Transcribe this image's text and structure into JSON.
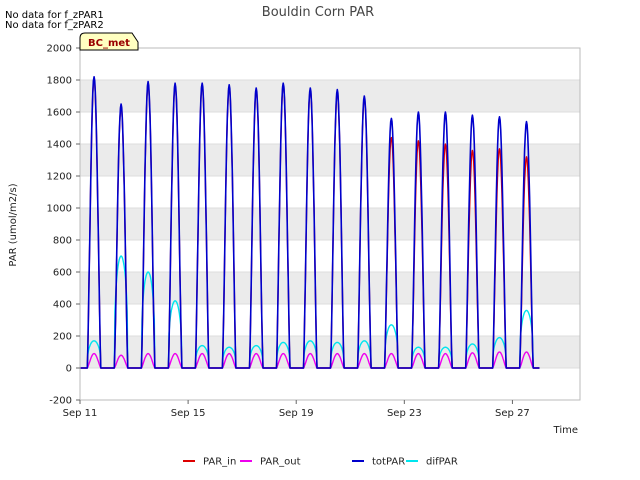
{
  "notes": [
    "No data for f_zPAR1",
    "No data for f_zPAR2"
  ],
  "site_badge": "BC_met",
  "colors": {
    "PAR_in": "#dd0000",
    "PAR_out": "#ee00ee",
    "totPAR": "#0000cc",
    "difPAR": "#00e5ee",
    "band": "#ebebeb"
  },
  "chart_data": {
    "type": "line",
    "title": "Bouldin Corn PAR",
    "xlabel": "Time",
    "ylabel": "PAR (umol/m2/s)",
    "ylim": [
      -200,
      2000
    ],
    "yticks": [
      -200,
      0,
      200,
      400,
      600,
      800,
      1000,
      1200,
      1400,
      1600,
      1800,
      2000
    ],
    "xlim_days": [
      11,
      29.5
    ],
    "xticks": [
      {
        "day": 11,
        "label": "Sep 11"
      },
      {
        "day": 15,
        "label": "Sep 15"
      },
      {
        "day": 19,
        "label": "Sep 19"
      },
      {
        "day": 23,
        "label": "Sep 23"
      },
      {
        "day": 27,
        "label": "Sep 27"
      }
    ],
    "days": [
      11,
      12,
      13,
      14,
      15,
      16,
      17,
      18,
      19,
      20,
      21,
      22,
      23,
      24,
      25,
      26,
      27
    ],
    "series": [
      {
        "name": "PAR_in",
        "daily_peak": [
          1810,
          1640,
          1780,
          1770,
          1770,
          1760,
          1740,
          1770,
          1740,
          1730,
          1690,
          1440,
          1420,
          1400,
          1360,
          1370,
          1320
        ]
      },
      {
        "name": "PAR_out",
        "daily_peak": [
          90,
          80,
          90,
          90,
          90,
          90,
          90,
          90,
          90,
          90,
          90,
          90,
          90,
          90,
          95,
          100,
          100
        ]
      },
      {
        "name": "totPAR",
        "daily_peak": [
          1820,
          1650,
          1790,
          1780,
          1780,
          1770,
          1750,
          1780,
          1750,
          1740,
          1700,
          1560,
          1600,
          1600,
          1580,
          1570,
          1540
        ]
      },
      {
        "name": "difPAR",
        "daily_peak": [
          170,
          700,
          600,
          420,
          140,
          130,
          140,
          160,
          170,
          160,
          170,
          270,
          130,
          130,
          150,
          190,
          360
        ]
      }
    ],
    "legend": [
      "PAR_in",
      "PAR_out",
      "totPAR",
      "difPAR"
    ],
    "legend_position": "bottom-center"
  }
}
